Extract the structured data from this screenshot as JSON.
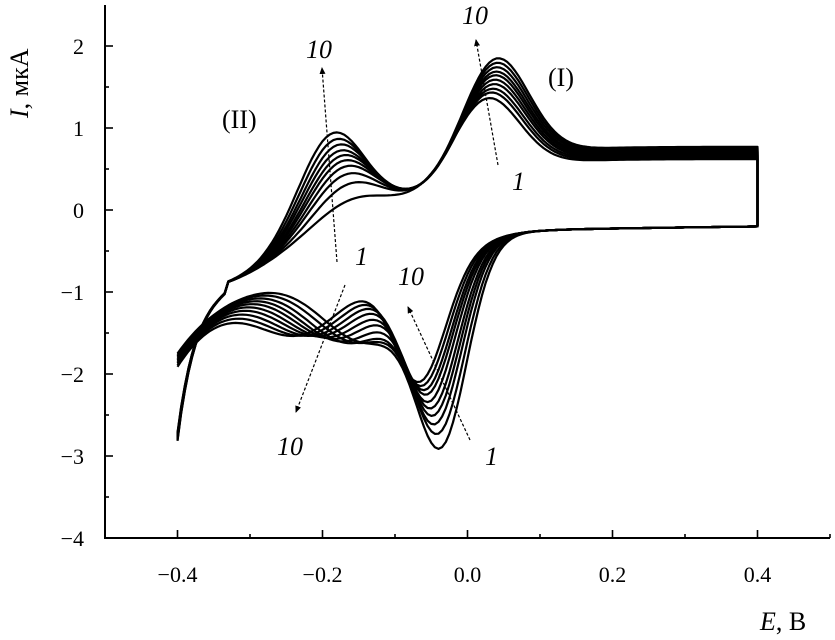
{
  "chart_data": {
    "type": "line",
    "xlabel": {
      "var": "E",
      "unit": ", В"
    },
    "ylabel": {
      "var": "I",
      "unit": ", мкА"
    },
    "xlim": [
      -0.5,
      0.5
    ],
    "ylim": [
      -4,
      2.5
    ],
    "x_ticks": [
      "−0.4",
      "−0.2",
      "0.0",
      "0.2",
      "0.4"
    ],
    "x_tick_values": [
      -0.4,
      -0.2,
      0.0,
      0.2,
      0.4
    ],
    "y_ticks": [
      "2",
      "1",
      "0",
      "−1",
      "−2",
      "−3",
      "−4"
    ],
    "y_tick_values": [
      2,
      1,
      0,
      -1,
      -2,
      -3,
      -4
    ],
    "grid": false,
    "cycles": 10,
    "scan_start": -0.4,
    "scan_end": 0.4,
    "peaks": {
      "anodic_I": {
        "x": [
          0.025,
          0.028,
          0.03,
          0.032,
          0.033,
          0.034,
          0.035,
          0.036,
          0.037,
          0.038
        ],
        "y": [
          1.5,
          1.55,
          1.58,
          1.62,
          1.66,
          1.7,
          1.73,
          1.77,
          1.81,
          1.85
        ]
      },
      "anodic_II": {
        "x": [
          -0.16,
          -0.165,
          -0.17,
          -0.172,
          -0.175,
          -0.177,
          -0.18,
          -0.182,
          -0.185,
          -0.188
        ],
        "y": [
          0.35,
          0.55,
          0.68,
          0.78,
          0.86,
          0.93,
          1.0,
          1.08,
          1.16,
          1.25
        ]
      },
      "cathodic_I": {
        "x": [
          -0.035,
          -0.038,
          -0.042,
          -0.045,
          -0.048,
          -0.052,
          -0.055,
          -0.058,
          -0.062,
          -0.066
        ],
        "y": [
          -2.65,
          -2.5,
          -2.4,
          -2.32,
          -2.25,
          -2.18,
          -2.1,
          -2.05,
          -2.0,
          -1.95
        ]
      },
      "cathodic_II": {
        "x": [
          -0.14,
          -0.15,
          -0.16,
          -0.17,
          -0.18,
          -0.19,
          -0.2,
          -0.21,
          -0.22,
          -0.23
        ],
        "y": [
          -1.55,
          -1.55,
          -1.55,
          -1.52,
          -1.48,
          -1.45,
          -1.42,
          -1.4,
          -1.38,
          -1.36
        ]
      }
    }
  },
  "annotations": {
    "peak_I": "(I)",
    "peak_II": "(II)",
    "anodic_I_10": "10",
    "anodic_I_1": "1",
    "anodic_II_10": "10",
    "anodic_II_1": "1",
    "cathodic_I_10": "10",
    "cathodic_I_1": "1",
    "cathodic_II_10": "10"
  }
}
